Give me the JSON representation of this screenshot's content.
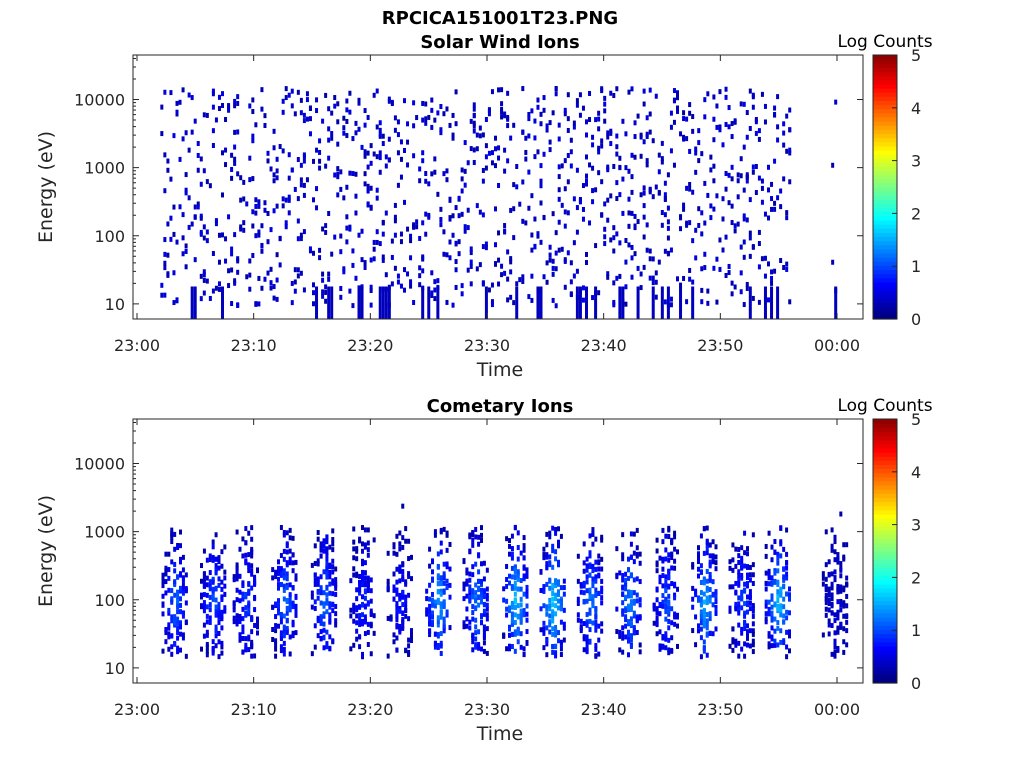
{
  "figure_title": "RPCICA151001T23.PNG",
  "colorbar": {
    "label": "Log Counts",
    "range": [
      0,
      5
    ],
    "ticks": [
      "0",
      "1",
      "2",
      "3",
      "4",
      "5"
    ],
    "colormap": "jet"
  },
  "chart_data": [
    {
      "type": "heatmap",
      "title": "Solar Wind Ions",
      "xlabel": "Time",
      "ylabel": "Energy (eV)",
      "yscale": "log",
      "ylim": [
        6,
        45000
      ],
      "xlim": [
        "23:00",
        "00:03"
      ],
      "xticks": [
        "23:00",
        "23:10",
        "23:20",
        "23:30",
        "23:40",
        "23:50",
        "00:00"
      ],
      "yticks": [
        "10",
        "100",
        "1000",
        "10000"
      ],
      "data_coverage_minutes": [
        [
          2,
          56
        ],
        [
          59.5,
          60
        ]
      ],
      "description_values": {
        "energy_band_eV": [
          10,
          40000
        ],
        "typical_log_counts": [
          0,
          0.3
        ],
        "max_log_counts": 0.5
      }
    },
    {
      "type": "heatmap",
      "title": "Cometary Ions",
      "xlabel": "Time",
      "ylabel": "Energy (eV)",
      "yscale": "log",
      "ylim": [
        6,
        45000
      ],
      "xlim": [
        "23:00",
        "00:03"
      ],
      "xticks": [
        "23:00",
        "23:10",
        "23:20",
        "23:30",
        "23:40",
        "23:50",
        "00:00"
      ],
      "yticks": [
        "10",
        "100",
        "1000",
        "10000"
      ],
      "bursts_minutes": [
        3.2,
        6.5,
        9.3,
        12.6,
        16.0,
        19.3,
        22.5,
        25.8,
        29.0,
        32.4,
        35.6,
        38.8,
        42.1,
        45.3,
        48.6,
        51.8,
        54.9,
        59.8
      ],
      "burst_peak_log_counts": [
        1.0,
        0.9,
        0.8,
        1.0,
        1.0,
        0.7,
        0.6,
        1.3,
        1.1,
        1.5,
        1.6,
        1.1,
        1.2,
        0.9,
        1.4,
        0.8,
        1.5,
        0.3
      ],
      "burst_energy_center_eV": 100,
      "data_coverage_minutes": [
        [
          2,
          56
        ],
        [
          59.5,
          60
        ]
      ]
    }
  ]
}
